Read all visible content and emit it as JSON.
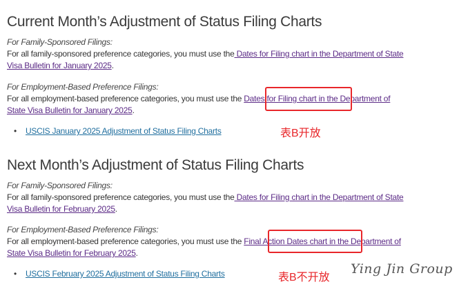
{
  "current": {
    "heading": "Current Month’s Adjustment of Status Filing Charts",
    "family": {
      "label": "For Family-Sponsored Filings:",
      "text1": "For all family-sponsored preference categories, you must use the",
      "link1": " Dates for Filing chart in the Department of State",
      "link2": "Visa Bulletin for January 2025",
      "end": "."
    },
    "employment": {
      "label": "For Employment-Based Preference Filings:",
      "text1": "For all employment-based preference categories, you must use the ",
      "link1": "Dates for Filing chart",
      "link1b": " in the Department of",
      "link2": "State Visa Bulletin for January 2025",
      "end": "."
    },
    "bullet_link": "USCIS January 2025 Adjustment of Status Filing Charts",
    "annotation": "表B开放"
  },
  "next": {
    "heading": "Next Month’s Adjustment of Status Filing Charts",
    "family": {
      "label": "For Family-Sponsored Filings:",
      "text1": "For all family-sponsored preference categories, you must use the",
      "link1": " Dates for Filing chart in the Department of State",
      "link2": "Visa Bulletin for February 2025",
      "end": "."
    },
    "employment": {
      "label": "For Employment-Based Preference Filings:",
      "text1": "For all employment-based preference categories, you must use the ",
      "link1": "Final Action Dates chart",
      "link1b": " in the Department of",
      "link2": "State Visa Bulletin for February 2025",
      "end": "."
    },
    "bullet_link": "USCIS February 2025 Adjustment of Status Filing Charts",
    "annotation": "表B不开放"
  },
  "watermark": "Ying Jin Group",
  "colors": {
    "highlight_box": "#e8262a",
    "visited_link": "#5b2a86",
    "link": "#1f6e9e"
  }
}
